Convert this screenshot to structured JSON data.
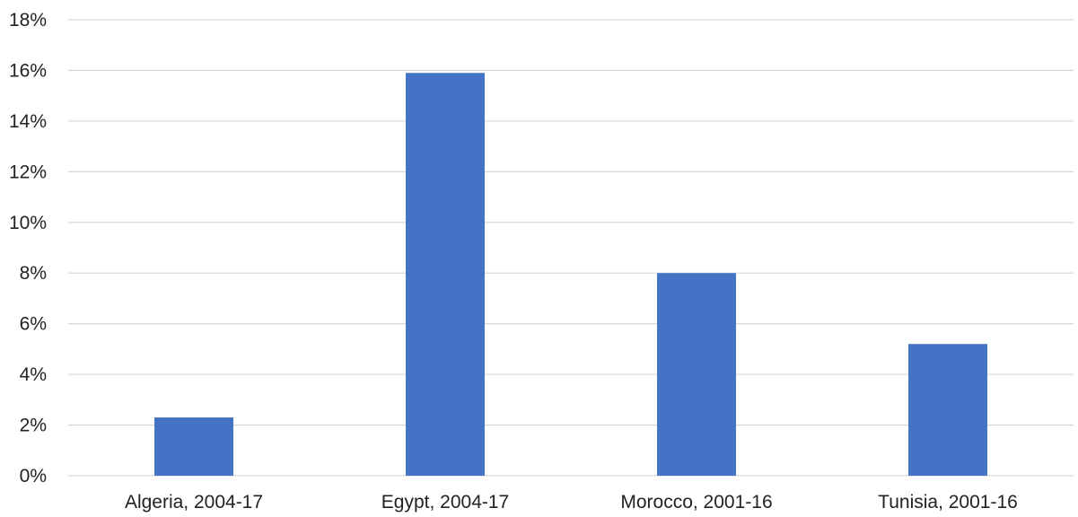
{
  "chart_data": {
    "type": "bar",
    "categories": [
      "Algeria, 2004-17",
      "Egypt, 2004-17",
      "Morocco, 2001-16",
      "Tunisia, 2001-16"
    ],
    "series": [
      {
        "values": [
          2.3,
          15.9,
          8.0,
          5.2
        ]
      }
    ],
    "ylim": [
      0,
      18
    ],
    "yticks": [
      0,
      2,
      4,
      6,
      8,
      10,
      12,
      14,
      16,
      18
    ],
    "ytick_labels": [
      "0%",
      "2%",
      "4%",
      "6%",
      "8%",
      "10%",
      "12%",
      "14%",
      "16%",
      "18%"
    ],
    "grid": true,
    "legend": "none",
    "colors": {
      "bar": "#4472c4",
      "grid": "#d9d9d9",
      "text": "#222222"
    }
  }
}
